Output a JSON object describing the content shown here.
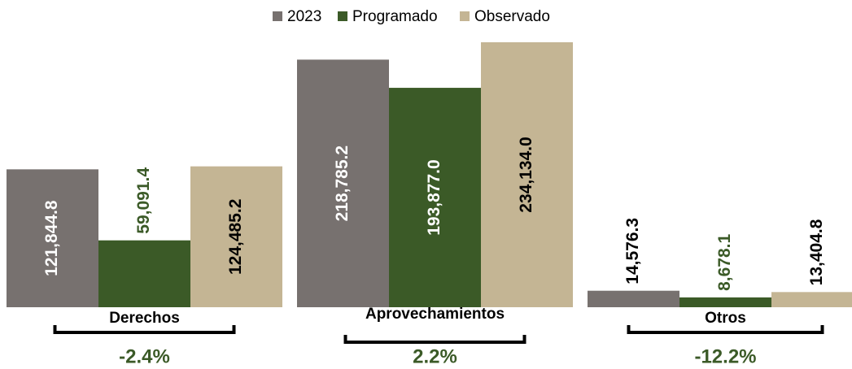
{
  "chart_data": {
    "type": "bar",
    "categories": [
      "Derechos",
      "Aprovechamientos",
      "Otros"
    ],
    "series": [
      {
        "name": "2023",
        "color": "#77716f",
        "values": [
          121844.8,
          218785.2,
          14576.3
        ],
        "value_labels": [
          "121,844.8",
          "218,785.2",
          "14,576.3"
        ]
      },
      {
        "name": "Programado",
        "color": "#3b5a27",
        "values": [
          59091.4,
          193877.0,
          8678.1
        ],
        "value_labels": [
          "59,091.4",
          "193,877.0",
          "8,678.1"
        ]
      },
      {
        "name": "Observado",
        "color": "#c4b594",
        "values": [
          124485.2,
          234134.0,
          13404.8
        ],
        "value_labels": [
          "124,485.2",
          "234,134.0",
          "13,404.8"
        ]
      }
    ],
    "annotations": [
      "-2.4%",
      "2.2%",
      "-12.2%"
    ]
  }
}
